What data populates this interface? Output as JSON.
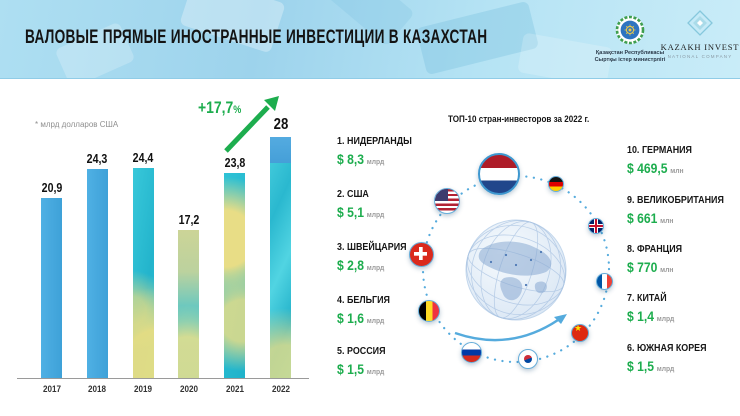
{
  "header": {
    "title": "ВАЛОВЫЕ ПРЯМЫЕ ИНОСТРАННЫЕ ИНВЕСТИЦИИ В КАЗАХСТАН",
    "mfa_logo": {
      "line1": "Қазақстан Республикасы",
      "line2": "Сыртқы істер министрлігі"
    },
    "invest_logo": {
      "name": "KAZAKH INVEST",
      "subtitle": "NATIONAL COMPANY"
    }
  },
  "chart_data": [
    {
      "type": "bar",
      "title": "Валовые прямые иностранные инвестиции в Казахстан",
      "unit_note": "* млрд долларов США",
      "categories": [
        "2017",
        "2018",
        "2019",
        "2020",
        "2021",
        "2022"
      ],
      "values": [
        20.9,
        24.3,
        24.4,
        17.2,
        23.8,
        28
      ],
      "value_labels": [
        "20,9",
        "24,3",
        "24,4",
        "17,2",
        "23,8",
        "28"
      ],
      "growth": {
        "value": "+17,7",
        "suffix": "%"
      },
      "ylim": [
        0,
        30
      ],
      "grid": false,
      "colors": {
        "bar_blue": "#41a7de",
        "flag_turquoise": "#2fc3d6",
        "flag_gold": "#e8dd86",
        "growth_green": "#1dad4e"
      }
    },
    {
      "type": "table",
      "title": "ТОП-10 стран-инвесторов за 2022 г.",
      "rows_left": [
        {
          "rank": "1.",
          "country": "НИДЕРЛАНДЫ",
          "amount": "$ 8,3",
          "unit": "млрд",
          "value": 8.3,
          "flag": "netherlands"
        },
        {
          "rank": "2.",
          "country": "США",
          "amount": "$ 5,1",
          "unit": "млрд",
          "value": 5.1,
          "flag": "usa"
        },
        {
          "rank": "3.",
          "country": "ШВЕЙЦАРИЯ",
          "amount": "$ 2,8",
          "unit": "млрд",
          "value": 2.8,
          "flag": "switzerland"
        },
        {
          "rank": "4.",
          "country": "БЕЛЬГИЯ",
          "amount": "$ 1,6",
          "unit": "млрд",
          "value": 1.6,
          "flag": "belgium"
        },
        {
          "rank": "5.",
          "country": "РОССИЯ",
          "amount": "$ 1,5",
          "unit": "млрд",
          "value": 1.5,
          "flag": "russia"
        }
      ],
      "rows_right": [
        {
          "rank": "10.",
          "country": "ГЕРМАНИЯ",
          "amount": "$ 469,5",
          "unit": "млн",
          "value": 469.5,
          "flag": "germany"
        },
        {
          "rank": "9.",
          "country": "ВЕЛИКОБРИТАНИЯ",
          "amount": "$ 661",
          "unit": "млн",
          "value": 661,
          "flag": "uk"
        },
        {
          "rank": "8.",
          "country": "ФРАНЦИЯ",
          "amount": "$ 770",
          "unit": "млн",
          "value": 770,
          "flag": "france"
        },
        {
          "rank": "7.",
          "country": "КИТАЙ",
          "amount": "$ 1,4",
          "unit": "млрд",
          "value": 1.4,
          "flag": "china"
        },
        {
          "rank": "6.",
          "country": "ЮЖНАЯ КОРЕЯ",
          "amount": "$ 1,5",
          "unit": "млрд",
          "value": 1.5,
          "flag": "south-korea"
        }
      ]
    }
  ]
}
